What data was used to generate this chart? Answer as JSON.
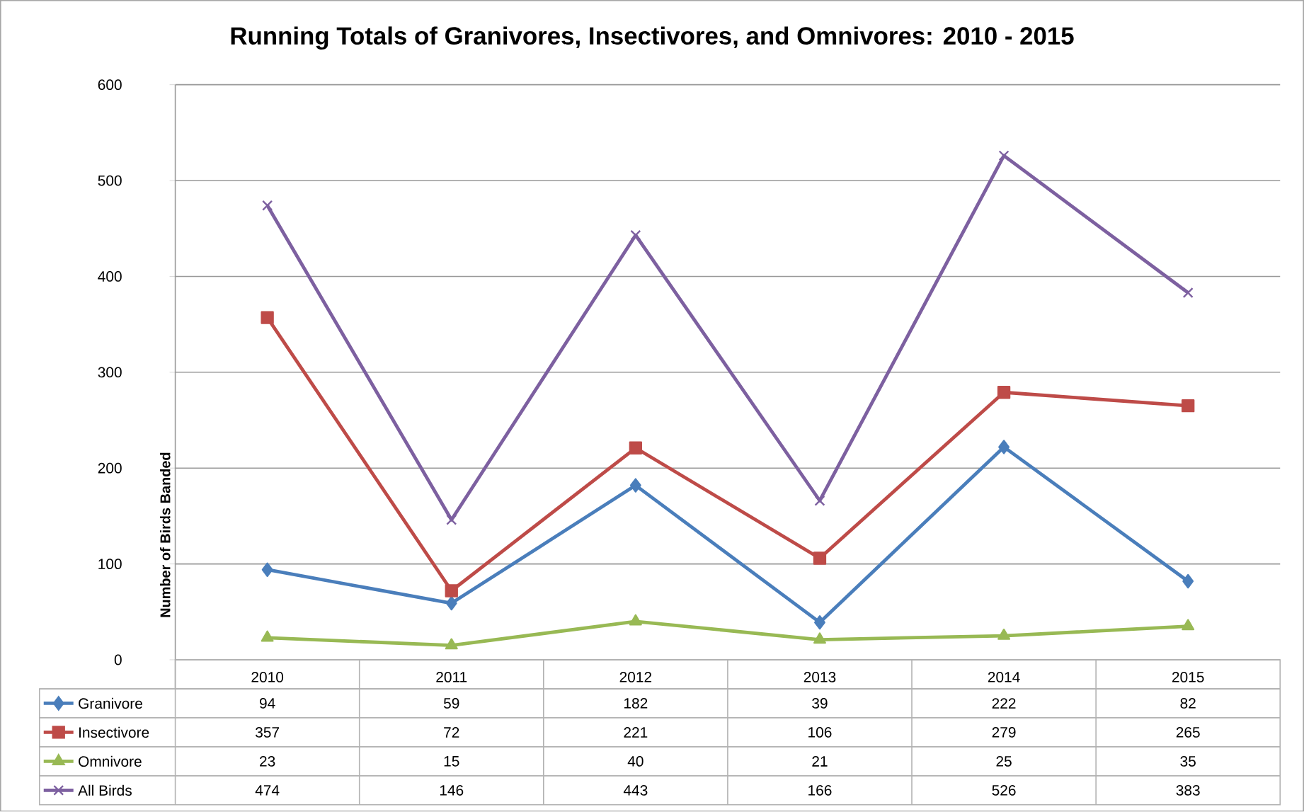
{
  "chart_data": {
    "type": "line",
    "title": "Running Totals of Granivores, Insectivores, and Omnivores: 2010 - 2015",
    "ylabel": "Number of Birds Banded",
    "categories": [
      "2010",
      "2011",
      "2012",
      "2013",
      "2014",
      "2015"
    ],
    "series": [
      {
        "name": "Granivore",
        "color": "#4a7ebb",
        "marker": "diamond",
        "values": [
          94,
          59,
          182,
          39,
          222,
          82
        ]
      },
      {
        "name": "Insectivore",
        "color": "#be4b48",
        "marker": "square",
        "values": [
          357,
          72,
          221,
          106,
          279,
          265
        ]
      },
      {
        "name": "Omnivore",
        "color": "#98b954",
        "marker": "triangle",
        "values": [
          23,
          15,
          40,
          21,
          25,
          35
        ]
      },
      {
        "name": "All Birds",
        "color": "#7d60a0",
        "marker": "cross",
        "values": [
          474,
          146,
          443,
          166,
          526,
          383
        ]
      }
    ],
    "ylim": [
      0,
      600
    ],
    "yticks": [
      0,
      100,
      200,
      300,
      400,
      500,
      600
    ],
    "grid": "y",
    "legend": "bottom",
    "data_labels": true
  }
}
